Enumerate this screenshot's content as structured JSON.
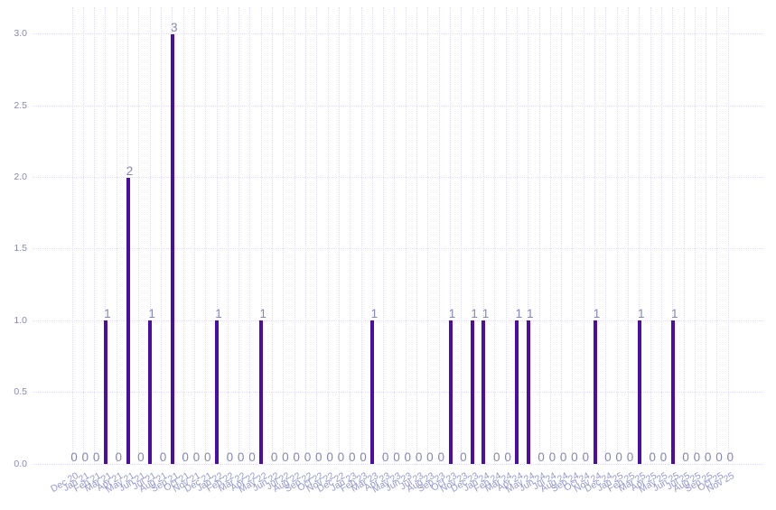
{
  "chart_data": {
    "type": "bar",
    "title": "",
    "xlabel": "",
    "ylabel": "",
    "categories": [
      "Dec 20",
      "Jan 21",
      "Feb 21",
      "Mar 21",
      "Apr 21",
      "May 21",
      "Jun 21",
      "Jul 21",
      "Aug 21",
      "Sep 21",
      "Oct 21",
      "Nov 21",
      "Dec 21",
      "Jan 22",
      "Feb 22",
      "Mar 22",
      "Apr 22",
      "May 22",
      "Jun 22",
      "Jul 22",
      "Aug 22",
      "Sep 22",
      "Oct 22",
      "Nov 22",
      "Dec 22",
      "Jan 23",
      "Feb 23",
      "Mar 23",
      "Apr 23",
      "May 23",
      "Jun 23",
      "Jul 23",
      "Aug 23",
      "Sep 23",
      "Oct 23",
      "Nov 23",
      "Dec 23",
      "Jan 24",
      "Feb 24",
      "Mar 24",
      "Apr 24",
      "May 24",
      "Jun 24",
      "Jul 24",
      "Aug 24",
      "Sep 24",
      "Oct 24",
      "Nov 24",
      "Dec 24",
      "Jan 25",
      "Feb 25",
      "Mar 25",
      "Apr 25",
      "May 25",
      "Jun 25",
      "Jul 25",
      "Aug 25",
      "Sep 25",
      "Oct 25",
      "Nov 25"
    ],
    "values": [
      0,
      0,
      0,
      1,
      0,
      2,
      0,
      1,
      0,
      3,
      0,
      0,
      0,
      1,
      0,
      0,
      0,
      1,
      0,
      0,
      0,
      0,
      0,
      0,
      0,
      0,
      0,
      1,
      0,
      0,
      0,
      0,
      0,
      0,
      1,
      0,
      1,
      1,
      0,
      0,
      1,
      1,
      0,
      0,
      0,
      0,
      0,
      1,
      0,
      0,
      0,
      1,
      0,
      0,
      1,
      0,
      0,
      0,
      0,
      0
    ],
    "value_labels_shown": true,
    "yticks": [
      0.0,
      0.5,
      1.0,
      1.5,
      2.0,
      2.5,
      3.0
    ],
    "ytick_labels": [
      "0.0",
      "0.5",
      "1.0",
      "1.5",
      "2.0",
      "2.5",
      "3.0"
    ],
    "ylim": [
      0,
      3.0
    ],
    "grid": true,
    "legend": "none",
    "colors": {
      "bar": "#4c0da6",
      "grid": "#dedcf2",
      "ytick_label": "#8889b6",
      "xtick_label": "#9699cd",
      "value_label": "#8587b3",
      "background": "#ffffff"
    }
  }
}
